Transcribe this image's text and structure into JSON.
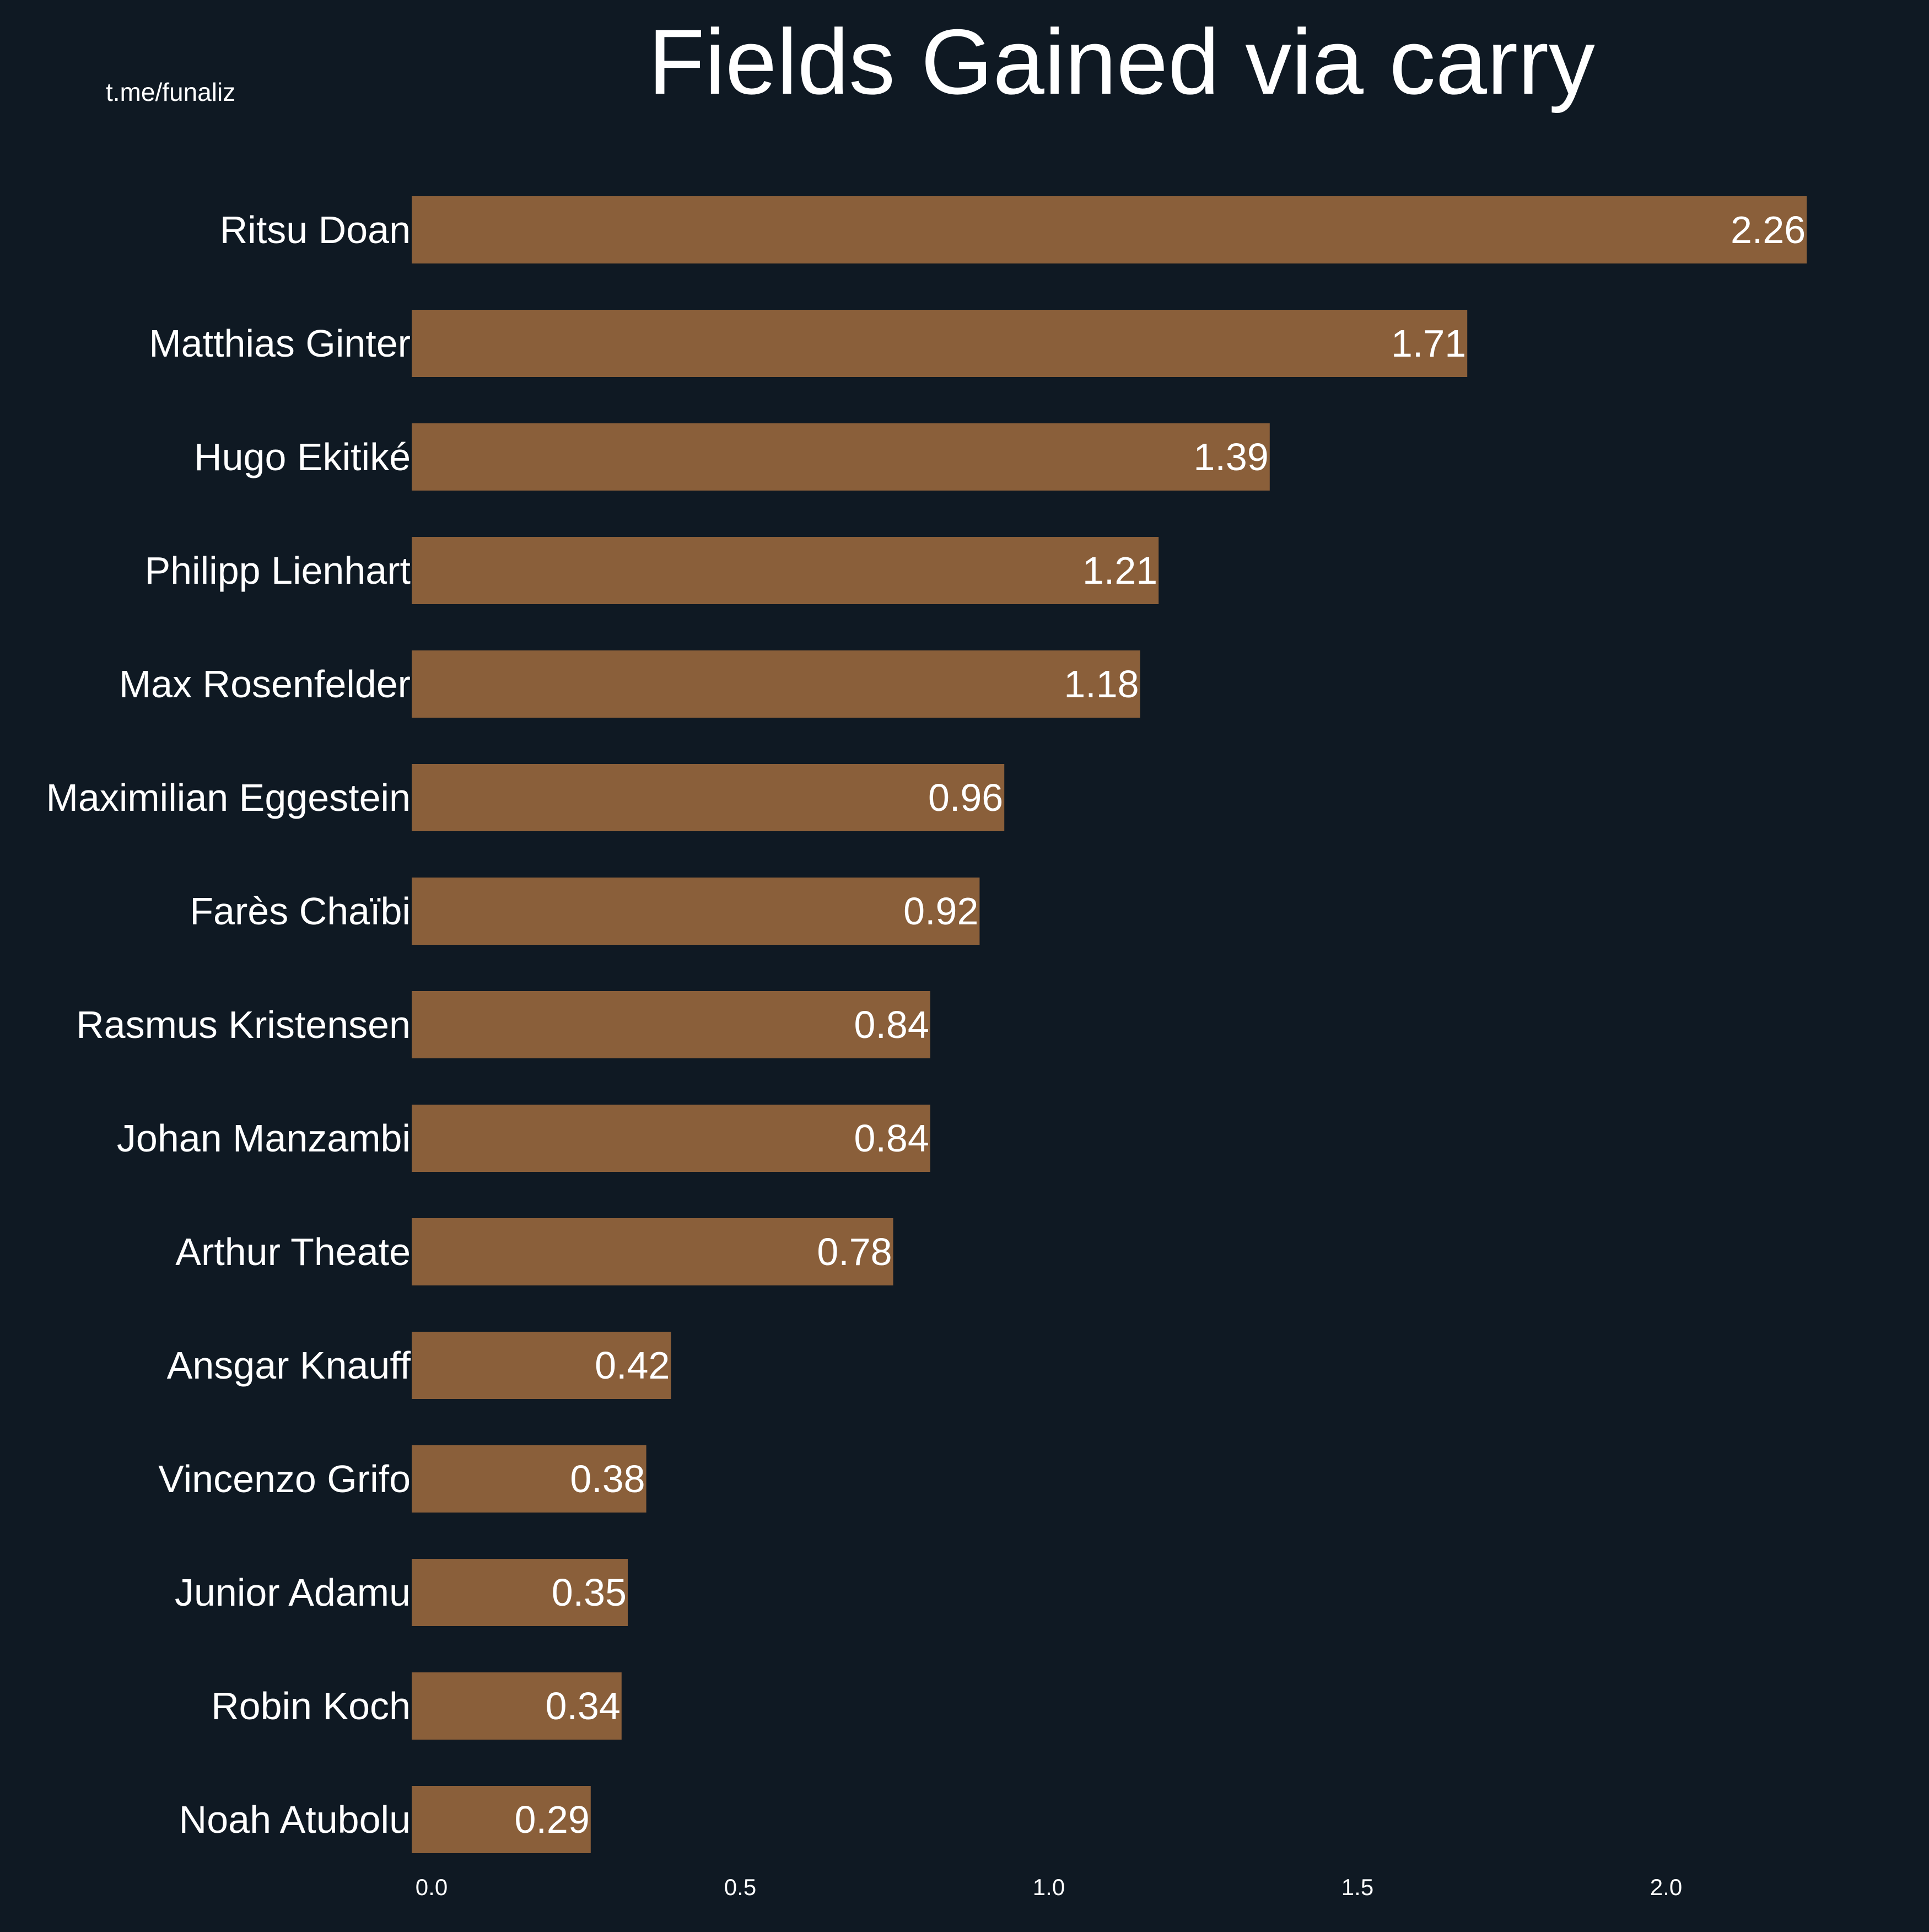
{
  "watermark": "t.me/funaliz",
  "colors": {
    "background": "#0f1923",
    "bar": "#8a5f3a",
    "text": "#ffffff"
  },
  "chart_data": {
    "type": "bar",
    "orientation": "horizontal",
    "title": "Fields Gained via carry",
    "xlabel": "",
    "ylabel": "",
    "xlim": [
      0,
      2.35
    ],
    "xticks": [
      0.0,
      0.5,
      1.0,
      1.5,
      2.0
    ],
    "xtick_labels": [
      "0.0",
      "0.5",
      "1.0",
      "1.5",
      "2.0"
    ],
    "grid": false,
    "categories": [
      "Ritsu Doan",
      "Matthias Ginter",
      "Hugo Ekitiké",
      "Philipp Lienhart",
      "Max Rosenfelder",
      "Maximilian Eggestein",
      "Farès Chaïbi",
      "Rasmus Kristensen",
      "Johan Manzambi",
      "Arthur Theate",
      "Ansgar Knauff",
      "Vincenzo Grifo",
      "Junior Adamu",
      "Robin Koch",
      "Noah Atubolu"
    ],
    "values": [
      2.26,
      1.71,
      1.39,
      1.21,
      1.18,
      0.96,
      0.92,
      0.84,
      0.84,
      0.78,
      0.42,
      0.38,
      0.35,
      0.34,
      0.29
    ],
    "value_labels": [
      "2.26",
      "1.71",
      "1.39",
      "1.21",
      "1.18",
      "0.96",
      "0.92",
      "0.84",
      "0.84",
      "0.78",
      "0.42",
      "0.38",
      "0.35",
      "0.34",
      "0.29"
    ]
  }
}
